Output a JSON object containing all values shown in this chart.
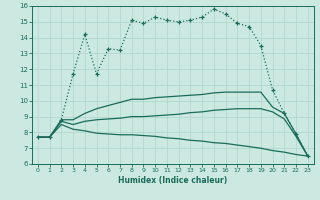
{
  "xlabel": "Humidex (Indice chaleur)",
  "xlim": [
    -0.5,
    23.5
  ],
  "ylim": [
    6,
    16
  ],
  "yticks": [
    6,
    7,
    8,
    9,
    10,
    11,
    12,
    13,
    14,
    15,
    16
  ],
  "xticks": [
    0,
    1,
    2,
    3,
    4,
    5,
    6,
    7,
    8,
    9,
    10,
    11,
    12,
    13,
    14,
    15,
    16,
    17,
    18,
    19,
    20,
    21,
    22,
    23
  ],
  "bg_color": "#cce9e1",
  "grid_color": "#b0d8d0",
  "line_color": "#1a6b5a",
  "series": {
    "top_line": [
      7.7,
      7.7,
      8.8,
      11.7,
      14.2,
      11.7,
      13.3,
      13.2,
      15.1,
      14.9,
      15.3,
      15.1,
      15.0,
      15.1,
      15.3,
      15.8,
      15.5,
      14.9,
      14.7,
      13.5,
      10.7,
      9.2,
      7.9,
      6.5
    ],
    "upper_mid": [
      7.7,
      7.7,
      8.8,
      8.8,
      9.2,
      9.5,
      9.7,
      9.9,
      10.1,
      10.1,
      10.2,
      10.25,
      10.3,
      10.35,
      10.4,
      10.5,
      10.55,
      10.55,
      10.55,
      10.55,
      9.6,
      9.2,
      7.9,
      6.5
    ],
    "lower_mid": [
      7.7,
      7.7,
      8.7,
      8.5,
      8.7,
      8.8,
      8.85,
      8.9,
      9.0,
      9.0,
      9.05,
      9.1,
      9.15,
      9.25,
      9.3,
      9.4,
      9.45,
      9.5,
      9.5,
      9.5,
      9.3,
      8.85,
      7.75,
      6.5
    ],
    "bottom_line": [
      7.7,
      7.7,
      8.5,
      8.2,
      8.1,
      7.95,
      7.9,
      7.85,
      7.85,
      7.8,
      7.75,
      7.65,
      7.6,
      7.5,
      7.45,
      7.35,
      7.3,
      7.2,
      7.1,
      7.0,
      6.85,
      6.75,
      6.6,
      6.5
    ]
  }
}
